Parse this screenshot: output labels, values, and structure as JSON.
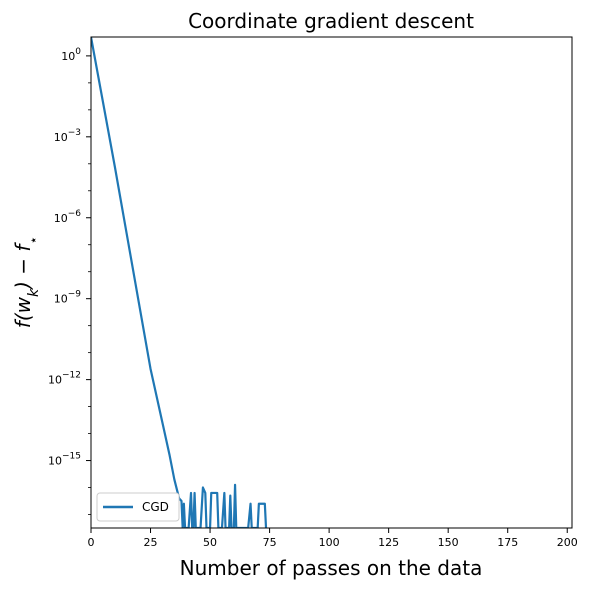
{
  "chart_data": {
    "type": "line",
    "title": "Coordinate gradient descent",
    "xlabel": "Number of passes on the data",
    "ylabel": "f(w_k) − f_⋆",
    "xlim": [
      0,
      202
    ],
    "ylim_log10": [
      -17.5,
      0.7
    ],
    "yscale": "log",
    "grid": false,
    "legend_position": "lower-left",
    "x_ticks": [
      0,
      25,
      50,
      75,
      100,
      125,
      150,
      175,
      200
    ],
    "x_tick_labels": [
      "0",
      "25",
      "50",
      "75",
      "100",
      "125",
      "150",
      "175",
      "200"
    ],
    "y_ticks_log10": [
      0,
      -3,
      -6,
      -9,
      -12,
      -15
    ],
    "y_tick_labels": [
      {
        "base": "10",
        "exp": "0"
      },
      {
        "base": "10",
        "exp": "−3"
      },
      {
        "base": "10",
        "exp": "−6"
      },
      {
        "base": "10",
        "exp": "−9"
      },
      {
        "base": "10",
        "exp": "−12"
      },
      {
        "base": "10",
        "exp": "−15"
      }
    ],
    "series": [
      {
        "name": "CGD",
        "color": "#1f77b4",
        "points": [
          [
            0,
            0.7
          ],
          [
            5,
            -1.7
          ],
          [
            10,
            -4.1
          ],
          [
            15,
            -6.6
          ],
          [
            20,
            -9.1
          ],
          [
            25,
            -11.6
          ],
          [
            30,
            -13.6
          ],
          [
            33,
            -14.8
          ],
          [
            35,
            -15.7
          ],
          [
            37,
            -16.4
          ],
          [
            38,
            -16.5
          ],
          [
            38.5,
            -17.5
          ],
          [
            39,
            -16.6
          ],
          [
            39.5,
            -17.5
          ],
          [
            41,
            -17.5
          ],
          [
            42,
            -16.2
          ],
          [
            42.5,
            -17.5
          ],
          [
            43,
            -17.5
          ],
          [
            43.5,
            -16.2
          ],
          [
            44,
            -17.5
          ],
          [
            46,
            -17.5
          ],
          [
            47,
            -16.0
          ],
          [
            48,
            -16.2
          ],
          [
            48.5,
            -17.5
          ],
          [
            50,
            -17.5
          ],
          [
            50.5,
            -16.2
          ],
          [
            53,
            -16.2
          ],
          [
            53.5,
            -17.5
          ],
          [
            55,
            -17.5
          ],
          [
            56,
            -16.2
          ],
          [
            56.5,
            -17.5
          ],
          [
            58,
            -17.5
          ],
          [
            58.5,
            -16.3
          ],
          [
            59,
            -17.5
          ],
          [
            60,
            -17.5
          ],
          [
            60.5,
            -15.9
          ],
          [
            61,
            -17.5
          ],
          [
            66,
            -17.5
          ],
          [
            67,
            -16.6
          ],
          [
            67.5,
            -17.5
          ],
          [
            70,
            -17.5
          ],
          [
            70.5,
            -16.6
          ],
          [
            73,
            -16.6
          ],
          [
            73.5,
            -17.5
          ]
        ]
      }
    ]
  }
}
